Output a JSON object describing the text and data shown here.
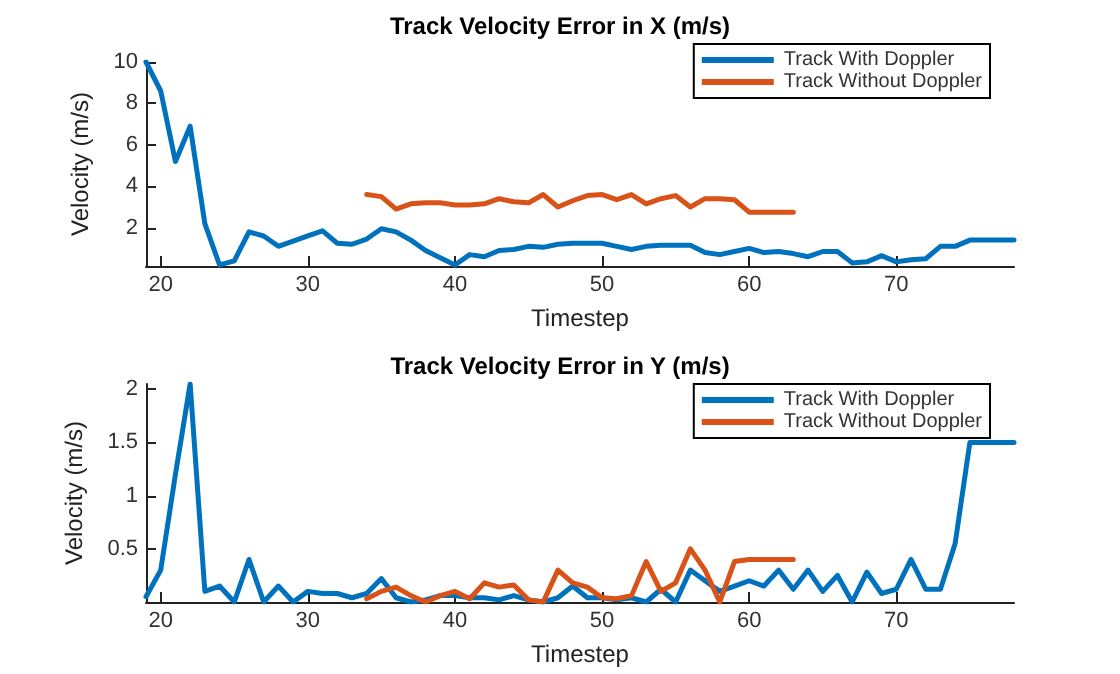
{
  "chart_data": [
    {
      "type": "line",
      "title": "Track Velocity Error in X (m/s)",
      "xlabel": "Timestep",
      "ylabel": "Velocity (m/s)",
      "x": [
        19,
        20,
        21,
        22,
        23,
        24,
        25,
        26,
        27,
        28,
        29,
        30,
        31,
        32,
        33,
        34,
        35,
        36,
        37,
        38,
        39,
        40,
        41,
        42,
        43,
        44,
        45,
        46,
        47,
        48,
        49,
        50,
        51,
        52,
        53,
        54,
        55,
        56,
        57,
        58,
        59,
        60,
        61,
        62,
        63,
        64,
        65,
        66,
        67,
        68,
        69,
        70,
        71,
        72,
        73,
        74,
        75,
        76,
        77,
        78
      ],
      "series": [
        {
          "name": "Track With Doppler",
          "color": "#0072bd",
          "values": [
            10,
            8.6,
            5.2,
            6.9,
            2.2,
            0.2,
            0.4,
            1.8,
            1.6,
            1.1,
            1.35,
            1.6,
            1.85,
            1.25,
            1.2,
            1.45,
            1.95,
            1.8,
            1.4,
            0.9,
            0.55,
            0.2,
            0.7,
            0.6,
            0.9,
            0.95,
            1.1,
            1.05,
            1.2,
            1.25,
            1.25,
            1.25,
            1.1,
            0.95,
            1.1,
            1.15,
            1.15,
            1.15,
            0.8,
            0.7,
            0.85,
            1.0,
            0.8,
            0.85,
            0.75,
            0.6,
            0.85,
            0.85,
            0.3,
            0.35,
            0.65,
            0.35,
            0.45,
            0.5,
            1.1,
            1.1,
            1.4,
            1.4,
            1.4,
            1.4
          ]
        },
        {
          "name": "Track Without Doppler",
          "color": "#d95319",
          "x": [
            34,
            35,
            36,
            37,
            38,
            39,
            40,
            41,
            42,
            43,
            44,
            45,
            46,
            47,
            48,
            49,
            50,
            51,
            52,
            53,
            54,
            55,
            56,
            57,
            58,
            59,
            60,
            61,
            62,
            63
          ],
          "values": [
            3.6,
            3.5,
            2.9,
            3.15,
            3.2,
            3.2,
            3.1,
            3.1,
            3.15,
            3.4,
            3.25,
            3.2,
            3.6,
            3.0,
            3.3,
            3.55,
            3.6,
            3.35,
            3.6,
            3.15,
            3.4,
            3.55,
            3.0,
            3.4,
            3.4,
            3.35,
            2.75,
            2.75,
            2.75,
            2.75
          ]
        }
      ],
      "xlim": [
        19,
        78
      ],
      "xticks": [
        20,
        30,
        40,
        50,
        60,
        70
      ],
      "ylim": [
        0.15,
        10
      ],
      "yticks": [
        2,
        4,
        6,
        8,
        10
      ],
      "grid": false,
      "legend": "top right",
      "marker": "none",
      "line_style": "solid"
    },
    {
      "type": "line",
      "title": "Track Velocity Error in Y (m/s)",
      "xlabel": "Timestep",
      "ylabel": "Velocity (m/s)",
      "x": [
        19,
        20,
        21,
        22,
        23,
        24,
        25,
        26,
        27,
        28,
        29,
        30,
        31,
        32,
        33,
        34,
        35,
        36,
        37,
        38,
        39,
        40,
        41,
        42,
        43,
        44,
        45,
        46,
        47,
        48,
        49,
        50,
        51,
        52,
        53,
        54,
        55,
        56,
        57,
        58,
        59,
        60,
        61,
        62,
        63,
        64,
        65,
        66,
        67,
        68,
        69,
        70,
        71,
        72,
        73,
        74,
        75,
        76,
        77,
        78
      ],
      "series": [
        {
          "name": "Track With Doppler",
          "color": "#0072bd",
          "values": [
            0.05,
            0.3,
            1.2,
            2.05,
            0.1,
            0.15,
            0.0,
            0.4,
            0.0,
            0.15,
            0.0,
            0.1,
            0.08,
            0.08,
            0.04,
            0.08,
            0.22,
            0.04,
            0.0,
            0.02,
            0.06,
            0.06,
            0.04,
            0.04,
            0.02,
            0.06,
            0.02,
            0.0,
            0.04,
            0.15,
            0.04,
            0.04,
            0.02,
            0.04,
            0.0,
            0.12,
            0.0,
            0.3,
            0.2,
            0.1,
            0.15,
            0.2,
            0.15,
            0.3,
            0.12,
            0.3,
            0.1,
            0.25,
            0.0,
            0.28,
            0.08,
            0.12,
            0.4,
            0.12,
            0.12,
            0.55,
            1.5,
            1.5,
            1.5,
            1.5
          ]
        },
        {
          "name": "Track Without Doppler",
          "color": "#d95319",
          "x": [
            34,
            35,
            36,
            37,
            38,
            39,
            40,
            41,
            42,
            43,
            44,
            45,
            46,
            47,
            48,
            49,
            50,
            51,
            52,
            53,
            54,
            55,
            56,
            57,
            58,
            59,
            60,
            61,
            62,
            63
          ],
          "values": [
            0.03,
            0.1,
            0.14,
            0.06,
            0.0,
            0.06,
            0.1,
            0.03,
            0.18,
            0.14,
            0.16,
            0.02,
            0.0,
            0.3,
            0.18,
            0.14,
            0.04,
            0.03,
            0.06,
            0.38,
            0.1,
            0.18,
            0.5,
            0.3,
            0.0,
            0.38,
            0.4,
            0.4,
            0.4,
            0.4
          ]
        }
      ],
      "xlim": [
        19,
        78
      ],
      "xticks": [
        20,
        30,
        40,
        50,
        60,
        70
      ],
      "ylim": [
        0,
        2.05
      ],
      "yticks": [
        0.5,
        1,
        1.5,
        2
      ],
      "grid": false,
      "legend": "top right",
      "marker": "none",
      "line_style": "solid"
    }
  ]
}
